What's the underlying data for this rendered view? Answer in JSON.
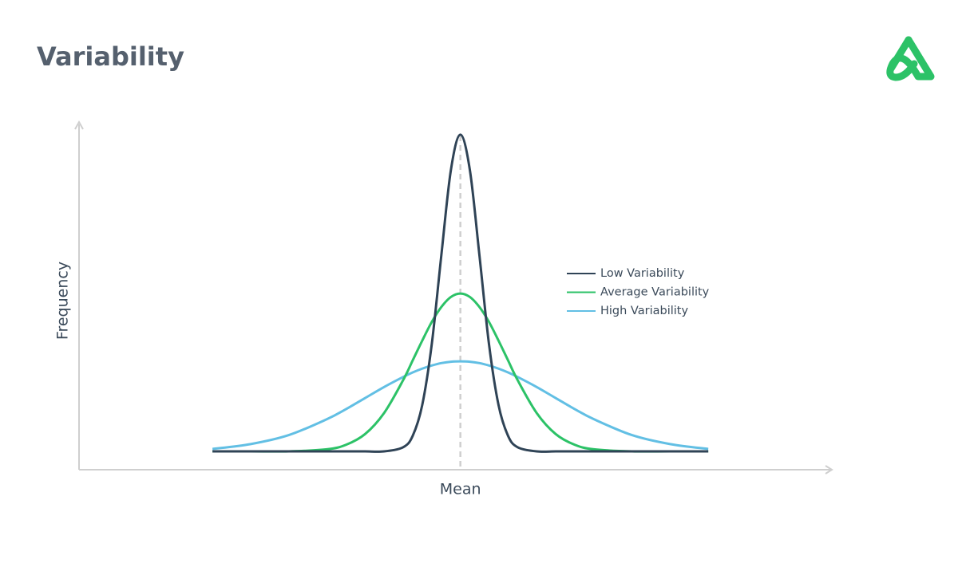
{
  "chart_data": {
    "type": "line",
    "title": "Variability",
    "ylabel": "Frequency",
    "annotations": [
      {
        "label": "Mean",
        "x": 0
      }
    ],
    "xlim": [
      -10,
      9.7
    ],
    "ylim": [
      0,
      100
    ],
    "grid": false,
    "legend": "right",
    "x": [
      -6.5,
      -5.5,
      -4.5,
      -3.5,
      -3,
      -2.5,
      -2,
      -1.5,
      -1.25,
      -1,
      -0.75,
      -0.5,
      -0.25,
      0,
      0.25,
      0.5,
      0.75,
      1,
      1.25,
      1.5,
      2,
      2.5,
      3,
      3.5,
      4.5,
      5.5,
      6.5
    ],
    "series": [
      {
        "name": "Low Variability",
        "color": "#2f4356",
        "values": [
          5.3,
          5.3,
          5.3,
          5.3,
          5.3,
          5.3,
          5.3,
          6.5,
          9.8,
          18.7,
          36.3,
          61.9,
          86.5,
          96.8,
          86.5,
          61.9,
          36.3,
          18.7,
          9.8,
          6.5,
          5.3,
          5.3,
          5.3,
          5.3,
          5.3,
          5.3,
          5.3
        ]
      },
      {
        "name": "Average Variability",
        "color": "#2cc267",
        "values": [
          5.3,
          5.3,
          5.3,
          5.9,
          7.2,
          10.3,
          16.4,
          25.9,
          31.6,
          37.3,
          42.7,
          47.0,
          49.9,
          50.9,
          49.9,
          47.0,
          42.7,
          37.3,
          31.6,
          25.9,
          16.4,
          10.3,
          7.2,
          5.9,
          5.3,
          5.3,
          5.3
        ]
      },
      {
        "name": "High Variability",
        "color": "#62bfe4",
        "values": [
          6.0,
          7.4,
          10.0,
          14.6,
          17.5,
          20.7,
          23.9,
          26.8,
          28.1,
          29.2,
          30.1,
          30.8,
          31.2,
          31.3,
          31.2,
          30.8,
          30.1,
          29.2,
          28.1,
          26.8,
          23.9,
          20.7,
          17.5,
          14.6,
          10.0,
          7.4,
          6.0
        ]
      }
    ]
  }
}
